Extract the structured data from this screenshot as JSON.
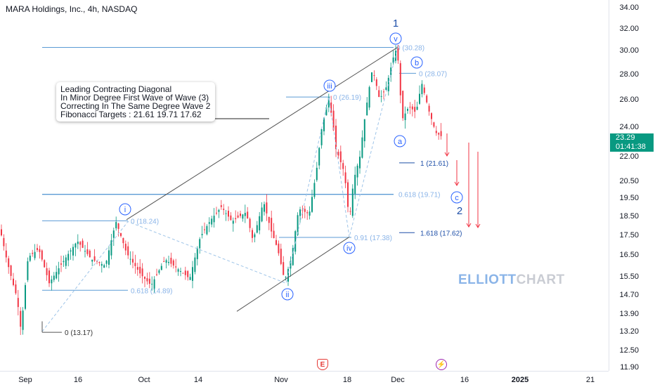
{
  "header": {
    "title": "MARA Holdings, Inc., 4h, NASDAQ"
  },
  "price_axis": {
    "ticks": [
      "34.00",
      "32.00",
      "30.00",
      "28.00",
      "26.00",
      "24.00",
      "22.00",
      "20.50",
      "19.50",
      "18.50",
      "17.50",
      "16.50",
      "15.50",
      "14.70",
      "13.90",
      "13.20",
      "12.50",
      "11.90"
    ]
  },
  "time_axis": {
    "ticks": [
      {
        "label": "Sep",
        "bold": false
      },
      {
        "label": "16",
        "bold": false
      },
      {
        "label": "Oct",
        "bold": false
      },
      {
        "label": "14",
        "bold": false
      },
      {
        "label": "Nov",
        "bold": false
      },
      {
        "label": "18",
        "bold": false
      },
      {
        "label": "Dec",
        "bold": false
      },
      {
        "label": "16",
        "bold": false
      },
      {
        "label": "2025",
        "bold": true
      },
      {
        "label": "21",
        "bold": false
      }
    ]
  },
  "current_price": {
    "price": "23.29",
    "countdown": "01:41:38",
    "color": "#089981"
  },
  "note": {
    "lines": [
      "Leading Contracting Diagonal",
      "In Minor Degree First Wave of Wave (3)",
      "Correcting In The Same Degree Wave 2",
      "Fibonacci Targets : 21.61   19.71   17.62"
    ]
  },
  "watermark": {
    "part1": "ELLIOTT",
    "part2": "CHART"
  },
  "events": {
    "earnings": "E",
    "dividend": "⚡"
  },
  "colors": {
    "up": "#089981",
    "down": "#f23645",
    "fib": "#5b9bd5",
    "wave_label": "#2962ff",
    "wave2_label": "#1e4fa8",
    "trendline": "#444444"
  },
  "chart_data": {
    "type": "candlestick",
    "title": "MARA Holdings, Inc., 4h, NASDAQ",
    "x_range": [
      "Sep",
      "Dec 21"
    ],
    "y_scale": "log",
    "ylim": [
      11.9,
      34.0
    ],
    "wave_labels": [
      {
        "label": "i",
        "price": 19.0
      },
      {
        "label": "ii",
        "price": 15.0
      },
      {
        "label": "iii",
        "price": 27.0
      },
      {
        "label": "iv",
        "price": 17.0
      },
      {
        "label": "v",
        "price": 31.0
      },
      {
        "label": "1",
        "price": 32.4
      },
      {
        "label": "a",
        "price": 23.6
      },
      {
        "label": "b",
        "price": 28.8
      },
      {
        "label": "c",
        "price": 19.7
      },
      {
        "label": "2",
        "price": 19.0
      }
    ],
    "fib_levels": [
      {
        "label": "0 (13.17)",
        "price": 13.17
      },
      {
        "label": "0 (18.24)",
        "price": 18.24
      },
      {
        "label": "0.618 (14.89)",
        "price": 14.89
      },
      {
        "label": "0 (26.19)",
        "price": 26.19
      },
      {
        "label": "0.91 (17.38)",
        "price": 17.38
      },
      {
        "label": "0 (30.28)",
        "price": 30.28
      },
      {
        "label": "0 (28.07)",
        "price": 28.07
      },
      {
        "label": "1 (21.61)",
        "price": 21.61
      },
      {
        "label": "0.618 (19.71)",
        "price": 19.71
      },
      {
        "label": "1.618 (17.62)",
        "price": 17.62
      }
    ],
    "current_price": 23.29
  }
}
